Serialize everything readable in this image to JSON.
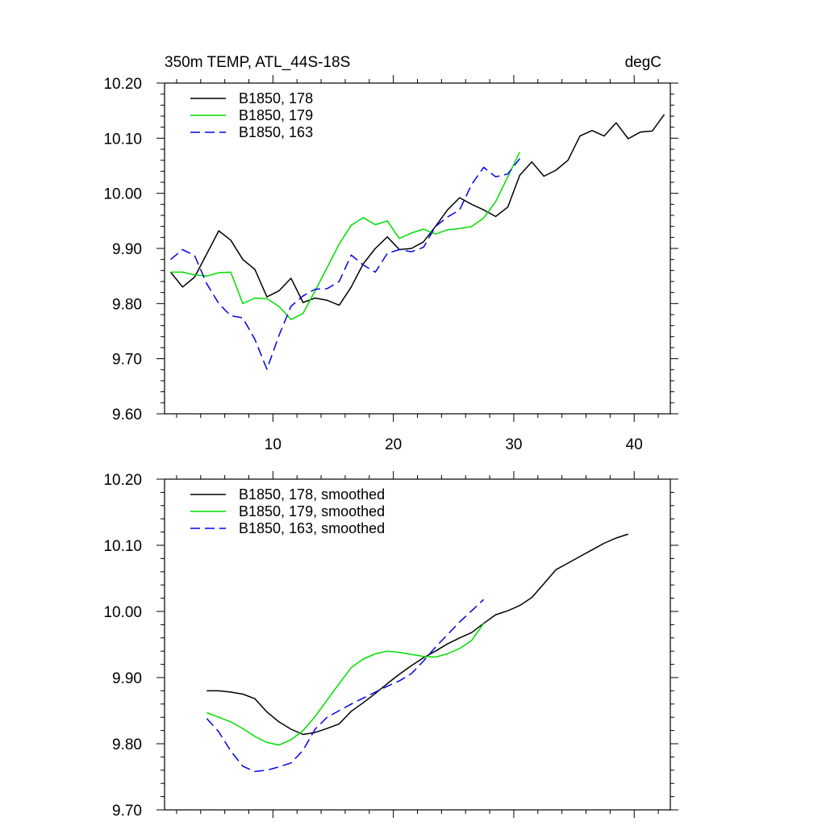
{
  "chart_data": [
    {
      "type": "line",
      "title": "350m TEMP, ATL_44S-18S",
      "units": "degC",
      "xlim": [
        1,
        43
      ],
      "ylim": [
        9.6,
        10.2
      ],
      "ymajor": [
        9.6,
        9.7,
        9.8,
        9.9,
        10.0,
        10.1,
        10.2
      ],
      "yminor_step": 0.02,
      "ytick_labels": [
        "9.60",
        "9.70",
        "9.80",
        "9.90",
        "10.00",
        "10.10",
        "10.20"
      ],
      "xmajor": [
        10,
        20,
        30,
        40
      ],
      "xminor_step": 2,
      "xtick_labels": [
        "10",
        "20",
        "30",
        "40"
      ],
      "legend_position": "top-left",
      "series": [
        {
          "name": "B1850, 178",
          "color": "#000000",
          "dash": "solid",
          "x": [
            1.5,
            2.5,
            3.5,
            4.5,
            5.5,
            6.5,
            7.5,
            8.5,
            9.5,
            10.5,
            11.5,
            12.5,
            13.5,
            14.5,
            15.5,
            16.5,
            17.5,
            18.5,
            19.5,
            20.5,
            21.5,
            22.5,
            23.5,
            24.5,
            25.5,
            26.5,
            27.5,
            28.5,
            29.5,
            30.5,
            31.5,
            32.5,
            33.5,
            34.5,
            35.5,
            36.5,
            37.5,
            38.5,
            39.5,
            40.5,
            41.5,
            42.5
          ],
          "y": [
            9.857,
            9.83,
            9.848,
            9.89,
            9.932,
            9.915,
            9.88,
            9.862,
            9.812,
            9.823,
            9.846,
            9.802,
            9.81,
            9.806,
            9.797,
            9.83,
            9.872,
            9.9,
            9.921,
            9.898,
            9.9,
            9.912,
            9.94,
            9.97,
            9.992,
            9.98,
            9.97,
            9.958,
            9.975,
            10.033,
            10.057,
            10.031,
            10.042,
            10.06,
            10.104,
            10.114,
            10.104,
            10.128,
            10.099,
            10.111,
            10.113,
            10.143
          ]
        },
        {
          "name": "B1850, 179",
          "color": "#00dd00",
          "dash": "solid",
          "x": [
            1.5,
            2.5,
            3.5,
            4.5,
            5.5,
            6.5,
            7.5,
            8.5,
            9.5,
            10.5,
            11.5,
            12.5,
            13.5,
            14.5,
            15.5,
            16.5,
            17.5,
            18.5,
            19.5,
            20.5,
            21.5,
            22.5,
            23.5,
            24.5,
            25.5,
            26.5,
            27.5,
            28.5,
            29.5,
            30.5
          ],
          "y": [
            9.857,
            9.857,
            9.852,
            9.85,
            9.856,
            9.857,
            9.8,
            9.81,
            9.809,
            9.795,
            9.771,
            9.782,
            9.823,
            9.865,
            9.908,
            9.942,
            9.956,
            9.943,
            9.95,
            9.918,
            9.928,
            9.935,
            9.926,
            9.934,
            9.936,
            9.94,
            9.955,
            9.985,
            10.03,
            10.075
          ]
        },
        {
          "name": "B1850, 163",
          "color": "#0000ee",
          "dash": "dashed",
          "x": [
            1.5,
            2.5,
            3.5,
            4.5,
            5.5,
            6.5,
            7.5,
            8.5,
            9.5,
            10.5,
            11.5,
            12.5,
            13.5,
            14.5,
            15.5,
            16.5,
            17.5,
            18.5,
            19.5,
            20.5,
            21.5,
            22.5,
            23.5,
            24.5,
            25.5,
            26.5,
            27.5,
            28.5,
            29.5,
            30.5
          ],
          "y": [
            9.88,
            9.898,
            9.887,
            9.836,
            9.8,
            9.778,
            9.774,
            9.735,
            9.681,
            9.742,
            9.795,
            9.814,
            9.826,
            9.827,
            9.84,
            9.888,
            9.87,
            9.857,
            9.891,
            9.898,
            9.894,
            9.902,
            9.94,
            9.957,
            9.97,
            10.016,
            10.047,
            10.03,
            10.035,
            10.063
          ]
        }
      ]
    },
    {
      "type": "line",
      "xlim": [
        1,
        43
      ],
      "ylim": [
        9.7,
        10.2
      ],
      "ymajor": [
        9.7,
        9.8,
        9.9,
        10.0,
        10.1,
        10.2
      ],
      "yminor_step": 0.02,
      "ytick_labels": [
        "9.70",
        "9.80",
        "9.90",
        "10.00",
        "10.10",
        "10.20"
      ],
      "xmajor": [
        10,
        20,
        30,
        40
      ],
      "xminor_step": 2,
      "legend_position": "top-left",
      "series": [
        {
          "name": "B1850, 178, smoothed",
          "color": "#000000",
          "dash": "solid",
          "x": [
            4.5,
            5.5,
            6.5,
            7.5,
            8.5,
            9.5,
            10.5,
            11.5,
            12.5,
            13.5,
            14.5,
            15.5,
            16.5,
            17.5,
            18.5,
            19.5,
            20.5,
            21.5,
            22.5,
            23.5,
            24.5,
            25.5,
            26.5,
            27.5,
            28.5,
            29.5,
            30.5,
            31.5,
            32.5,
            33.5,
            34.5,
            35.5,
            36.5,
            37.5,
            38.5,
            39.5
          ],
          "y": [
            9.88,
            9.88,
            9.878,
            9.875,
            9.868,
            9.848,
            9.833,
            9.822,
            9.814,
            9.817,
            9.823,
            9.83,
            9.849,
            9.862,
            9.876,
            9.891,
            9.905,
            9.918,
            9.93,
            9.94,
            9.951,
            9.96,
            9.968,
            9.982,
            9.995,
            10.001,
            10.009,
            10.021,
            10.042,
            10.063,
            10.073,
            10.083,
            10.093,
            10.103,
            10.111,
            10.117
          ]
        },
        {
          "name": "B1850, 179, smoothed",
          "color": "#00dd00",
          "dash": "solid",
          "x": [
            4.5,
            5.5,
            6.5,
            7.5,
            8.5,
            9.5,
            10.5,
            11.5,
            12.5,
            13.5,
            14.5,
            15.5,
            16.5,
            17.5,
            18.5,
            19.5,
            20.5,
            21.5,
            22.5,
            23.5,
            24.5,
            25.5,
            26.5,
            27.5
          ],
          "y": [
            9.847,
            9.84,
            9.833,
            9.823,
            9.811,
            9.802,
            9.798,
            9.806,
            9.82,
            9.841,
            9.866,
            9.891,
            9.915,
            9.928,
            9.936,
            9.94,
            9.938,
            9.935,
            9.932,
            9.931,
            9.936,
            9.944,
            9.956,
            9.982
          ]
        },
        {
          "name": "B1850, 163, smoothed",
          "color": "#0000ee",
          "dash": "dashed",
          "x": [
            4.5,
            5.5,
            6.5,
            7.5,
            8.5,
            9.5,
            10.5,
            11.5,
            12.5,
            13.5,
            14.5,
            15.5,
            16.5,
            17.5,
            18.5,
            19.5,
            20.5,
            21.5,
            22.5,
            23.5,
            24.5,
            25.5,
            26.5,
            27.5
          ],
          "y": [
            9.838,
            9.818,
            9.789,
            9.766,
            9.758,
            9.76,
            9.765,
            9.771,
            9.79,
            9.822,
            9.84,
            9.85,
            9.86,
            9.869,
            9.878,
            9.887,
            9.895,
            9.906,
            9.925,
            9.946,
            9.965,
            9.984,
            10.001,
            10.018
          ]
        }
      ]
    }
  ]
}
